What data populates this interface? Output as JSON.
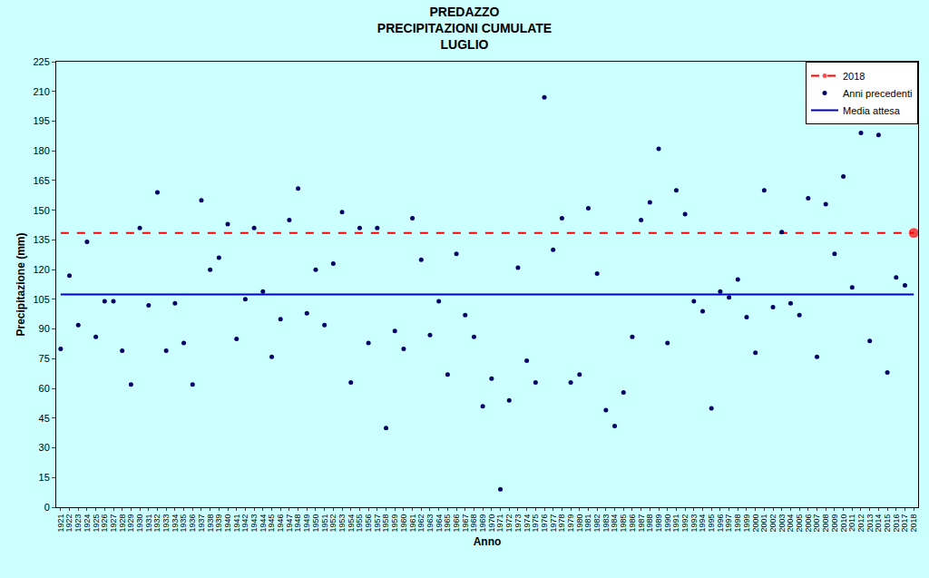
{
  "chart_data": {
    "type": "scatter",
    "title": "PREDAZZO\nPRECIPITAZIONI CUMULATE\nLUGLIO",
    "x_label": "Anno",
    "y_label": "Precipitazione (mm)",
    "xlim": [
      1920.5,
      2018.5
    ],
    "xticks": [
      1921,
      1922,
      1923,
      1924,
      1925,
      1926,
      1927,
      1928,
      1929,
      1930,
      1931,
      1932,
      1933,
      1934,
      1935,
      1936,
      1937,
      1938,
      1939,
      1940,
      1941,
      1942,
      1943,
      1944,
      1945,
      1946,
      1947,
      1948,
      1949,
      1950,
      1951,
      1952,
      1953,
      1954,
      1955,
      1956,
      1957,
      1958,
      1959,
      1960,
      1961,
      1962,
      1963,
      1964,
      1965,
      1966,
      1967,
      1968,
      1969,
      1970,
      1971,
      1972,
      1973,
      1974,
      1975,
      1976,
      1977,
      1978,
      1979,
      1980,
      1981,
      1982,
      1983,
      1984,
      1985,
      1986,
      1987,
      1988,
      1989,
      1990,
      1991,
      1992,
      1993,
      1994,
      1995,
      1996,
      1997,
      1998,
      1999,
      2000,
      2001,
      2002,
      2003,
      2004,
      2005,
      2006,
      2007,
      2008,
      2009,
      2010,
      2011,
      2012,
      2013,
      2014,
      2015,
      2016,
      2017,
      2018
    ],
    "ylim": [
      0,
      225
    ],
    "yticks": [
      0,
      15,
      30,
      45,
      60,
      75,
      90,
      105,
      120,
      135,
      150,
      165,
      180,
      195,
      210,
      225
    ],
    "grid": false,
    "legend": "top right",
    "series": [
      {
        "name": "2018",
        "type": "line",
        "color": "#ff0000",
        "line_style": "dash",
        "marker": "circle",
        "x": [
          1921,
          2018
        ],
        "values": [
          138.5,
          138.5
        ]
      },
      {
        "name": "Anni precedenti",
        "type": "scatter",
        "color": "#000066",
        "marker": "circle",
        "x": [
          1921,
          1922,
          1923,
          1924,
          1925,
          1926,
          1927,
          1928,
          1929,
          1930,
          1931,
          1932,
          1933,
          1934,
          1935,
          1936,
          1937,
          1938,
          1939,
          1940,
          1941,
          1942,
          1943,
          1944,
          1945,
          1946,
          1947,
          1948,
          1949,
          1950,
          1951,
          1952,
          1953,
          1954,
          1955,
          1956,
          1957,
          1958,
          1959,
          1960,
          1961,
          1962,
          1963,
          1964,
          1965,
          1966,
          1967,
          1968,
          1969,
          1970,
          1971,
          1972,
          1973,
          1974,
          1975,
          1976,
          1977,
          1978,
          1979,
          1980,
          1981,
          1982,
          1983,
          1984,
          1985,
          1986,
          1987,
          1988,
          1989,
          1990,
          1991,
          1992,
          1993,
          1994,
          1995,
          1996,
          1997,
          1998,
          1999,
          2000,
          2001,
          2002,
          2003,
          2004,
          2005,
          2006,
          2007,
          2008,
          2009,
          2010,
          2011,
          2012,
          2013,
          2014,
          2015,
          2016,
          2017
        ],
        "values": [
          80,
          117,
          92,
          134,
          86,
          104,
          104,
          79,
          62,
          141,
          102,
          159,
          79,
          103,
          83,
          62,
          155,
          120,
          126,
          143,
          85,
          105,
          141,
          109,
          76,
          95,
          145,
          161,
          98,
          120,
          92,
          123,
          149,
          63,
          141,
          83,
          141,
          40,
          89,
          80,
          146,
          125,
          87,
          104,
          67,
          128,
          97,
          86,
          51,
          65,
          9,
          54,
          121,
          74,
          63,
          207,
          130,
          146,
          63,
          67,
          151,
          118,
          49,
          41,
          58,
          86,
          145,
          154,
          181,
          83,
          160,
          148,
          104,
          99,
          50,
          109,
          106,
          115,
          96,
          78,
          160,
          101,
          139,
          103,
          97,
          156,
          76,
          153,
          128,
          167,
          111,
          189,
          84,
          188,
          68,
          116,
          112
        ]
      },
      {
        "name": "Media attesa",
        "type": "line",
        "color": "#0000c0",
        "line_style": "solid",
        "x": [
          1921,
          2018
        ],
        "values": [
          107.5,
          107.5
        ]
      }
    ]
  }
}
